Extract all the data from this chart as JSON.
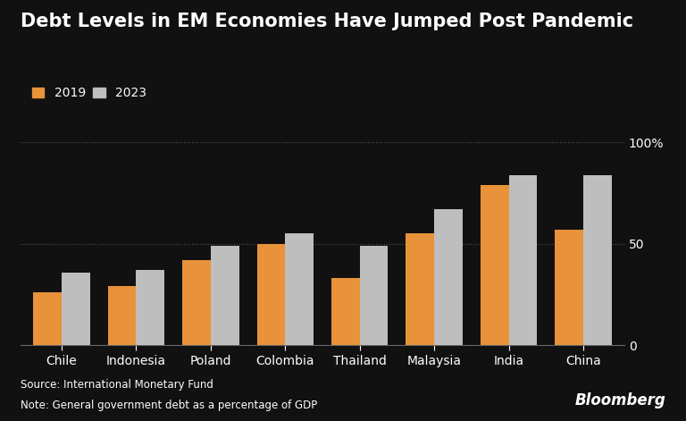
{
  "title": "Debt Levels in EM Economies Have Jumped Post Pandemic",
  "categories": [
    "Chile",
    "Indonesia",
    "Poland",
    "Colombia",
    "Thailand",
    "Malaysia",
    "India",
    "China"
  ],
  "values_2019": [
    26,
    29,
    42,
    50,
    33,
    55,
    79,
    57
  ],
  "values_2023": [
    36,
    37,
    49,
    55,
    49,
    67,
    84,
    84
  ],
  "color_2019": "#E8923A",
  "color_2023": "#BEBEBE",
  "background_color": "#111111",
  "text_color": "#ffffff",
  "axis_color": "#666666",
  "grid_color": "#555555",
  "ylim": [
    0,
    108
  ],
  "yticks": [
    0,
    50,
    100
  ],
  "ytick_labels": [
    "0",
    "50",
    "100%"
  ],
  "source_text": "Source: International Monetary Fund",
  "note_text": "Note: General government debt as a percentage of GDP",
  "bloomberg_text": "Bloomberg",
  "legend_2019": "2019",
  "legend_2023": "2023",
  "title_fontsize": 15,
  "label_fontsize": 10,
  "tick_fontsize": 10,
  "bar_width": 0.38
}
